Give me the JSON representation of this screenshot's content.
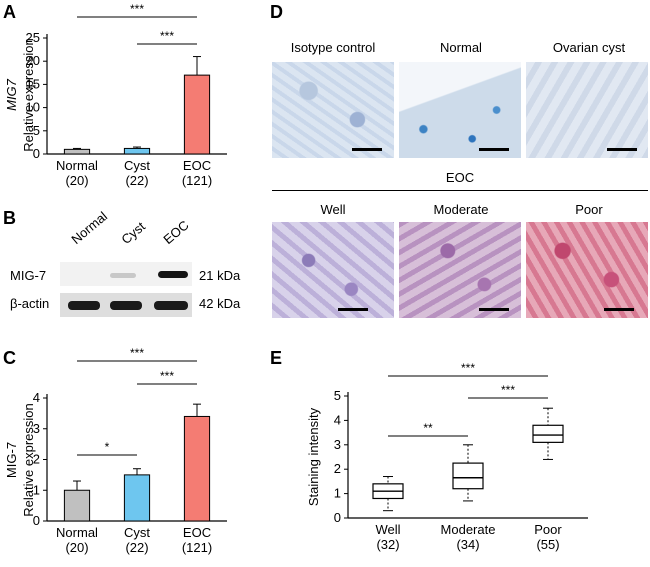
{
  "figure": {
    "panel_letters": [
      "A",
      "B",
      "C",
      "D",
      "E"
    ]
  },
  "chart_data": [
    {
      "id": "A",
      "type": "bar",
      "ylabel_italic": "MIG7",
      "ylabel": "Relative expression",
      "categories": [
        "Normal",
        "Cyst",
        "EOC"
      ],
      "category_counts": [
        "(20)",
        "(22)",
        "(121)"
      ],
      "values": [
        1.0,
        1.2,
        17.0
      ],
      "errors": [
        0.2,
        0.3,
        4.0
      ],
      "colors": [
        "#c0c0c0",
        "#6ec6ef",
        "#f47c73"
      ],
      "ylim": [
        0,
        25
      ],
      "yticks": [
        0,
        5,
        10,
        15,
        20,
        25
      ],
      "significance": [
        {
          "from": 0,
          "to": 2,
          "label": "***"
        },
        {
          "from": 1,
          "to": 2,
          "label": "***"
        }
      ]
    },
    {
      "id": "C",
      "type": "bar",
      "ylabel": "MIG-7\nRelative expression",
      "categories": [
        "Normal",
        "Cyst",
        "EOC"
      ],
      "category_counts": [
        "(20)",
        "(22)",
        "(121)"
      ],
      "values": [
        1.0,
        1.5,
        3.4
      ],
      "errors": [
        0.3,
        0.2,
        0.4
      ],
      "colors": [
        "#c0c0c0",
        "#6ec6ef",
        "#f47c73"
      ],
      "ylim": [
        0,
        4
      ],
      "yticks": [
        0,
        1,
        2,
        3,
        4
      ],
      "significance": [
        {
          "from": 0,
          "to": 2,
          "label": "***"
        },
        {
          "from": 0,
          "to": 1,
          "label": "*"
        },
        {
          "from": 1,
          "to": 2,
          "label": "***"
        }
      ]
    },
    {
      "id": "E",
      "type": "boxplot",
      "ylabel": "Staining intensity",
      "categories": [
        "Well",
        "Moderate",
        "Poor"
      ],
      "category_counts": [
        "(32)",
        "(34)",
        "(55)"
      ],
      "boxes": [
        {
          "min": 0.3,
          "q1": 0.8,
          "median": 1.1,
          "q3": 1.4,
          "max": 1.7
        },
        {
          "min": 0.7,
          "q1": 1.2,
          "median": 1.65,
          "q3": 2.25,
          "max": 3.0
        },
        {
          "min": 2.4,
          "q1": 3.1,
          "median": 3.4,
          "q3": 3.8,
          "max": 4.5
        }
      ],
      "ylim": [
        0,
        5
      ],
      "yticks": [
        0,
        1,
        2,
        3,
        4,
        5
      ],
      "significance": [
        {
          "from": 0,
          "to": 2,
          "label": "***"
        },
        {
          "from": 0,
          "to": 1,
          "label": "**"
        },
        {
          "from": 1,
          "to": 2,
          "label": "***"
        }
      ]
    }
  ],
  "western_blot": {
    "lanes": [
      "Normal",
      "Cyst",
      "EOC"
    ],
    "rows": [
      {
        "label": "MIG-7",
        "size": "21 kDa"
      },
      {
        "label": "β-actin",
        "size": "42 kDa"
      }
    ]
  },
  "histology": {
    "top_row": [
      "Isotype control",
      "Normal",
      "Ovarian cyst"
    ],
    "group_title": "EOC",
    "bottom_row": [
      "Well",
      "Moderate",
      "Poor"
    ]
  }
}
